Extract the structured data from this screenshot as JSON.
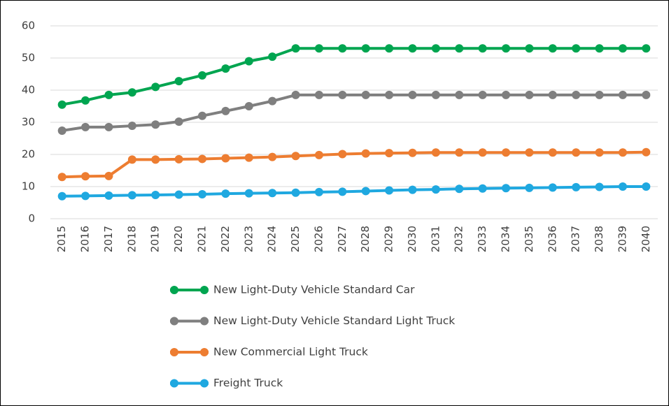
{
  "chart_data": {
    "type": "line",
    "categories": [
      "2015",
      "2016",
      "2017",
      "2018",
      "2019",
      "2020",
      "2021",
      "2022",
      "2023",
      "2024",
      "2025",
      "2026",
      "2027",
      "2028",
      "2029",
      "2030",
      "2031",
      "2032",
      "2033",
      "2034",
      "2035",
      "2036",
      "2037",
      "2038",
      "2039",
      "2040"
    ],
    "series": [
      {
        "name": "New Light-Duty Vehicle Standard Car",
        "color": "#00a550",
        "values": [
          35.5,
          36.8,
          38.5,
          39.3,
          41,
          42.8,
          44.6,
          46.7,
          49,
          50.4,
          53,
          53,
          53,
          53,
          53,
          53,
          53,
          53,
          53,
          53,
          53,
          53,
          53,
          53,
          53,
          53
        ]
      },
      {
        "name": "New Light-Duty Vehicle Standard Light Truck",
        "color": "#7f7f7f",
        "values": [
          27.4,
          28.5,
          28.5,
          28.9,
          29.3,
          30.2,
          32,
          33.5,
          35,
          36.6,
          38.5,
          38.5,
          38.5,
          38.5,
          38.5,
          38.5,
          38.5,
          38.5,
          38.5,
          38.5,
          38.5,
          38.5,
          38.5,
          38.5,
          38.5,
          38.5
        ]
      },
      {
        "name": "New Commercial Light Truck",
        "color": "#ed7d31",
        "values": [
          13,
          13.2,
          13.3,
          18.4,
          18.4,
          18.5,
          18.6,
          18.8,
          19,
          19.2,
          19.5,
          19.8,
          20.1,
          20.3,
          20.4,
          20.5,
          20.6,
          20.6,
          20.6,
          20.6,
          20.6,
          20.6,
          20.6,
          20.6,
          20.6,
          20.7
        ]
      },
      {
        "name": "Freight Truck",
        "color": "#1fa8e0",
        "values": [
          7,
          7.1,
          7.2,
          7.3,
          7.4,
          7.5,
          7.6,
          7.8,
          7.9,
          8,
          8.1,
          8.3,
          8.4,
          8.6,
          8.8,
          9,
          9.1,
          9.3,
          9.4,
          9.5,
          9.6,
          9.7,
          9.8,
          9.9,
          10,
          10
        ]
      }
    ],
    "ylim": [
      0,
      60
    ],
    "yticks": [
      0,
      10,
      20,
      30,
      40,
      50,
      60
    ],
    "grid": true,
    "legend": "bottom"
  }
}
